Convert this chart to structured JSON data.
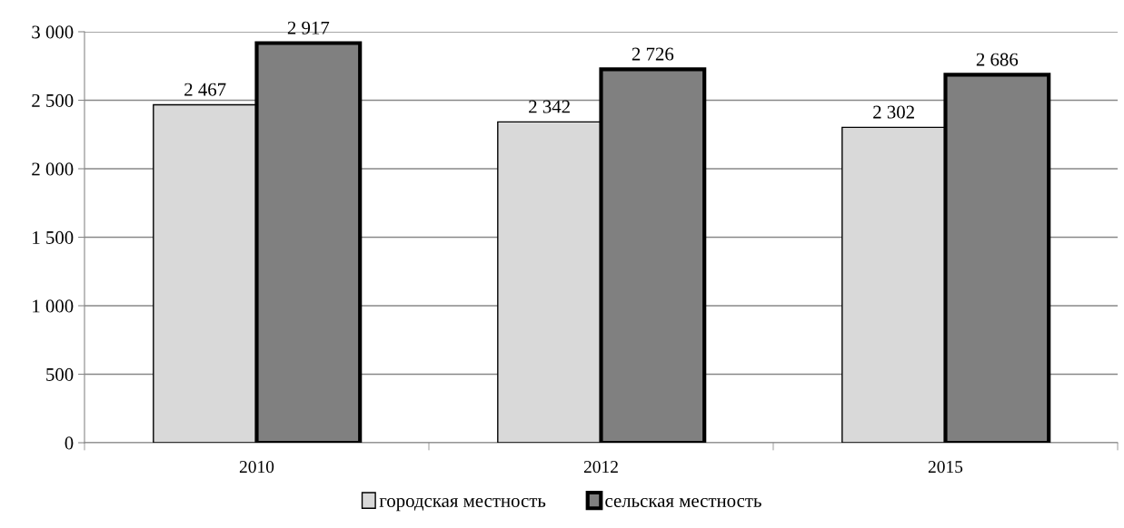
{
  "chart_data": {
    "type": "bar",
    "categories": [
      "2010",
      "2012",
      "2015"
    ],
    "series": [
      {
        "name": "городская местность",
        "color": "#d9d9d9",
        "values": [
          2467,
          2342,
          2302
        ],
        "value_labels": [
          "2 467",
          "2 342",
          "2 302"
        ]
      },
      {
        "name": "сельская местность",
        "color": "#808080",
        "values": [
          2917,
          2726,
          2686
        ],
        "value_labels": [
          "2 917",
          "2 726",
          "2 686"
        ]
      }
    ],
    "ylim": [
      0,
      3000
    ],
    "yticks": [
      {
        "value": 0,
        "label": "0"
      },
      {
        "value": 500,
        "label": "500"
      },
      {
        "value": 1000,
        "label": "1 000"
      },
      {
        "value": 1500,
        "label": "1 500"
      },
      {
        "value": 2000,
        "label": "2 000"
      },
      {
        "value": 2500,
        "label": "2 500"
      },
      {
        "value": 3000,
        "label": "3 000"
      }
    ],
    "grid": "y",
    "legend": "bottom"
  }
}
